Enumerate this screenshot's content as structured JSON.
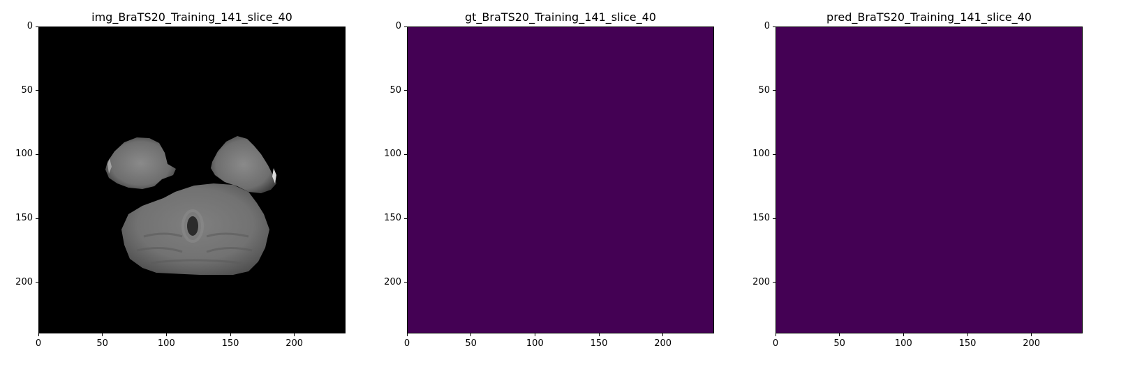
{
  "chart_data": [
    {
      "type": "heatmap",
      "title": "img_BraTS20_Training_141_slice_40",
      "colormap": "gray",
      "content": "axial brain MRI slice (cerebellum and temporal lobes) on black background",
      "xlim": [
        0,
        240
      ],
      "ylim": [
        240,
        0
      ],
      "x_ticks": [
        0,
        50,
        100,
        150,
        200
      ],
      "y_ticks": [
        0,
        50,
        100,
        150,
        200
      ]
    },
    {
      "type": "heatmap",
      "title": "gt_BraTS20_Training_141_slice_40",
      "colormap": "viridis",
      "fill_color": "#440154",
      "content": "uniform zero mask",
      "xlim": [
        0,
        240
      ],
      "ylim": [
        240,
        0
      ],
      "x_ticks": [
        0,
        50,
        100,
        150,
        200
      ],
      "y_ticks": [
        0,
        50,
        100,
        150,
        200
      ]
    },
    {
      "type": "heatmap",
      "title": "pred_BraTS20_Training_141_slice_40",
      "colormap": "viridis",
      "fill_color": "#440154",
      "content": "uniform zero mask",
      "xlim": [
        0,
        240
      ],
      "ylim": [
        240,
        0
      ],
      "x_ticks": [
        0,
        50,
        100,
        150,
        200
      ],
      "y_ticks": [
        0,
        50,
        100,
        150,
        200
      ]
    }
  ]
}
